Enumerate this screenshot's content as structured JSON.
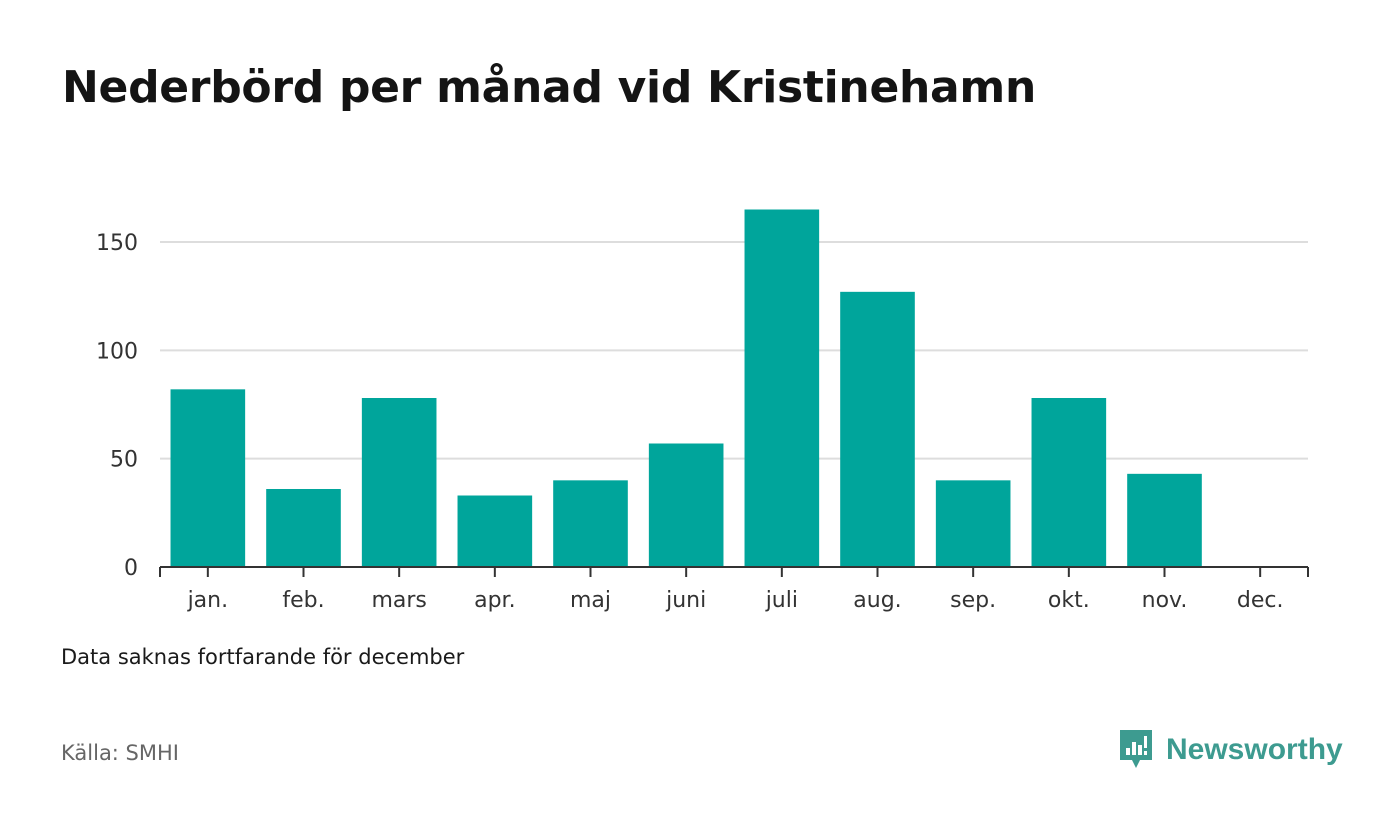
{
  "title": "Nederbörd per månad vid Kristinehamn",
  "note": "Data saknas fortfarande för december",
  "source": "Källa: SMHI",
  "brand": {
    "name": "Newsworthy",
    "icon": "newsworthy-logo-icon",
    "color": "#3d9b90"
  },
  "chart_data": {
    "type": "bar",
    "categories": [
      "jan.",
      "feb.",
      "mars",
      "apr.",
      "maj",
      "juni",
      "juli",
      "aug.",
      "sep.",
      "okt.",
      "nov.",
      "dec."
    ],
    "values": [
      82,
      36,
      78,
      33,
      40,
      57,
      165,
      127,
      40,
      78,
      43,
      null
    ],
    "yticks": [
      0,
      50,
      100,
      150
    ],
    "ytick_labels": [
      "0",
      "50",
      "100",
      "150"
    ],
    "ylim": [
      0,
      170
    ],
    "grid": true,
    "bar_color": "#00a59b",
    "title": "Nederbörd per månad vid Kristinehamn",
    "xlabel": "",
    "ylabel": ""
  }
}
